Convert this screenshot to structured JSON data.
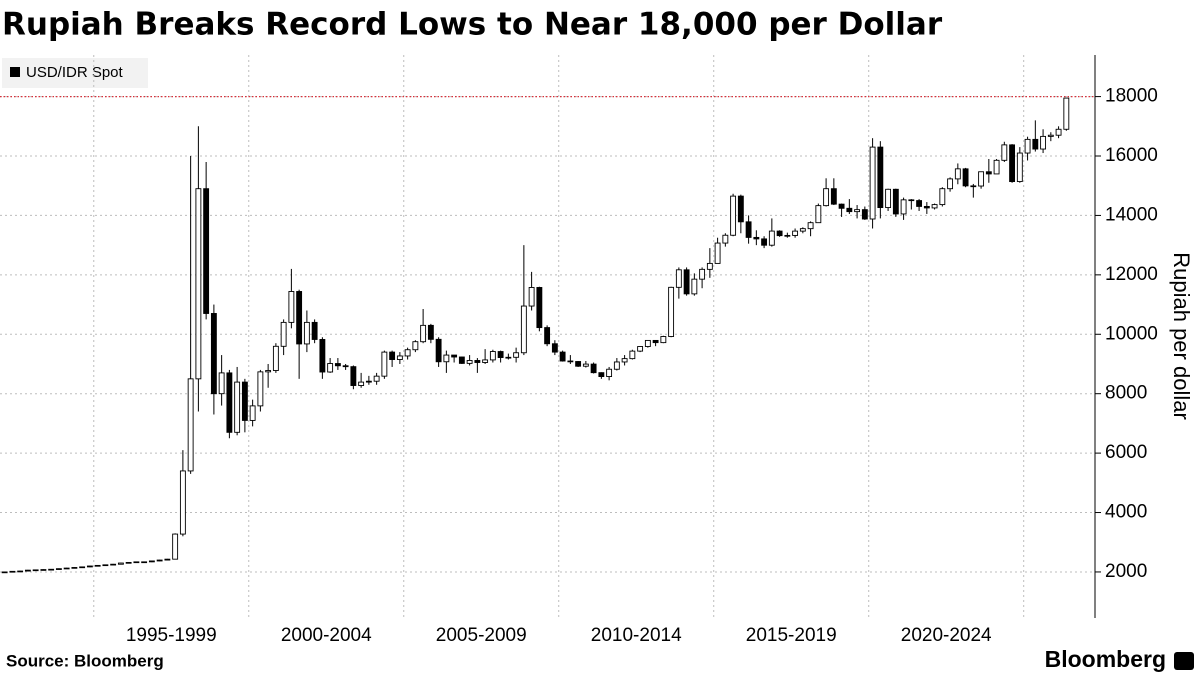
{
  "chart_data": {
    "type": "candlestick",
    "title": "Rupiah Breaks Record Lows to Near 18,000 per Dollar",
    "y_axis_label": "Rupiah per dollar",
    "source": "Source: Bloomberg",
    "brand": "Bloomberg",
    "ylim": [
      450,
      19400
    ],
    "yticks": [
      2000,
      4000,
      6000,
      8000,
      10000,
      12000,
      14000,
      16000,
      18000
    ],
    "xlim": [
      -0.6,
      140.7
    ],
    "xticks": [
      {
        "value": 12,
        "label": "1995-1999"
      },
      {
        "value": 32,
        "label": "2000-2004"
      },
      {
        "value": 52,
        "label": "2005-2009"
      },
      {
        "value": 72,
        "label": "2010-2014"
      },
      {
        "value": 92,
        "label": "2015-2019"
      },
      {
        "value": 112,
        "label": "2020-2024"
      },
      {
        "value": 132,
        "label": null
      }
    ],
    "grid": true,
    "legend_position": "top-left",
    "reference_line": {
      "value": 18000,
      "color": "#d9303a"
    },
    "series": [
      {
        "name": "USD/IDR Spot",
        "color": "#000000",
        "up_color": "#ffffff",
        "down_color": "#000000",
        "open": [
          1990,
          2000,
          2020,
          2030,
          2060,
          2070,
          2080,
          2090,
          2110,
          2130,
          2150,
          2170,
          2200,
          2220,
          2240,
          2260,
          2300,
          2320,
          2340,
          2340,
          2370,
          2400,
          2430,
          3275,
          5400,
          8500,
          14900,
          10700,
          8000,
          8700,
          6700,
          8390,
          7100,
          7590,
          8735,
          8780,
          9595,
          10400,
          11440,
          9675,
          10400,
          9825,
          8730,
          9015,
          8940,
          8910,
          8275,
          8390,
          8420,
          8590,
          9400,
          9150,
          9270,
          9480,
          9750,
          10300,
          9830,
          9075,
          9300,
          9235,
          9020,
          9118,
          9050,
          9137,
          9419,
          9217,
          9225,
          9378,
          10950,
          11575,
          10225,
          9681,
          9400,
          9100,
          9083,
          8925,
          8996,
          8708,
          8577,
          8823,
          9068,
          9180,
          9433,
          9588,
          9793,
          9719,
          9925,
          11580,
          12170,
          11360,
          11855,
          12185,
          12385,
          13070,
          13333,
          14650,
          13785,
          13260,
          13210,
          12998,
          13473,
          13320,
          13327,
          13472,
          13555,
          13756,
          14330,
          14900,
          14380,
          14240,
          14128,
          14195,
          13880,
          16300,
          14265,
          14880,
          14050,
          14525,
          14500,
          14303,
          14253,
          14365,
          14900,
          15230,
          15568,
          14995,
          14990,
          15470,
          15397,
          15855,
          16375,
          15140,
          16100,
          16560,
          16235,
          16660,
          16700,
          16900
        ],
        "high": [
          2010,
          2030,
          2040,
          2070,
          2080,
          2090,
          2100,
          2120,
          2140,
          2160,
          2180,
          2210,
          2230,
          2250,
          2270,
          2310,
          2330,
          2350,
          2350,
          2380,
          2410,
          2440,
          3300,
          6100,
          16000,
          17000,
          15800,
          11000,
          9300,
          8800,
          8900,
          8500,
          7800,
          8800,
          9000,
          9700,
          10500,
          12200,
          11500,
          10800,
          10500,
          9900,
          9200,
          9200,
          9000,
          8950,
          8700,
          8600,
          8700,
          9450,
          9450,
          9400,
          9550,
          9800,
          10850,
          10350,
          9900,
          9450,
          9300,
          9250,
          9300,
          9200,
          9500,
          9480,
          9450,
          9350,
          9550,
          13000,
          12100,
          11600,
          10300,
          9800,
          9450,
          9300,
          9100,
          9100,
          9050,
          8720,
          8900,
          9200,
          9300,
          9480,
          9600,
          9800,
          9800,
          9950,
          11600,
          12250,
          12250,
          12050,
          12250,
          12900,
          13250,
          13400,
          14730,
          14700,
          14000,
          13500,
          13300,
          13900,
          13500,
          13420,
          13560,
          13600,
          13800,
          14400,
          15250,
          15250,
          14400,
          14550,
          14350,
          14300,
          16600,
          16500,
          14900,
          14900,
          14600,
          14550,
          14550,
          14450,
          14400,
          14950,
          15280,
          15750,
          15600,
          15060,
          15470,
          15900,
          15900,
          16480,
          16400,
          16300,
          16650,
          17200,
          16900,
          16800,
          17000,
          17950
        ],
        "low": [
          1980,
          1990,
          2010,
          2020,
          2050,
          2060,
          2070,
          2080,
          2100,
          2120,
          2140,
          2160,
          2190,
          2210,
          2230,
          2250,
          2290,
          2310,
          2330,
          2330,
          2360,
          2390,
          2430,
          3200,
          5300,
          7400,
          10500,
          7300,
          7600,
          6500,
          6600,
          6700,
          6900,
          7400,
          8200,
          8700,
          9300,
          10200,
          8500,
          9400,
          9700,
          8500,
          8700,
          8800,
          8800,
          8150,
          8200,
          8300,
          8300,
          8500,
          8900,
          9000,
          9150,
          9400,
          9700,
          9700,
          8900,
          8700,
          9050,
          9000,
          8950,
          8700,
          9000,
          9050,
          9050,
          9150,
          9050,
          9300,
          10800,
          10100,
          9600,
          9300,
          9080,
          9000,
          8900,
          8880,
          8680,
          8500,
          8450,
          8780,
          8950,
          9150,
          9400,
          9550,
          9600,
          9700,
          9900,
          11200,
          11300,
          11300,
          11550,
          11900,
          12400,
          12950,
          13300,
          13400,
          13050,
          13000,
          12900,
          12950,
          13280,
          13250,
          13250,
          13400,
          13300,
          13750,
          14300,
          14350,
          13950,
          14050,
          13900,
          13850,
          13560,
          13900,
          14150,
          13950,
          13850,
          14200,
          14150,
          14050,
          14200,
          14300,
          14800,
          15050,
          14950,
          14600,
          14900,
          15100,
          15400,
          15800,
          15100,
          15100,
          15850,
          16150,
          16100,
          16500,
          16600,
          16850
        ],
        "close": [
          2000,
          2020,
          2030,
          2060,
          2070,
          2080,
          2090,
          2110,
          2130,
          2150,
          2170,
          2200,
          2220,
          2240,
          2260,
          2300,
          2320,
          2340,
          2340,
          2370,
          2400,
          2430,
          3275,
          5400,
          8500,
          14900,
          10700,
          8000,
          8700,
          6700,
          8390,
          7100,
          7590,
          8735,
          8780,
          9595,
          10400,
          11440,
          9675,
          10400,
          9825,
          8730,
          9015,
          8940,
          8910,
          8275,
          8390,
          8420,
          8590,
          9400,
          9150,
          9270,
          9480,
          9750,
          10300,
          9830,
          9075,
          9300,
          9235,
          9020,
          9118,
          9050,
          9137,
          9419,
          9217,
          9225,
          9378,
          10950,
          11575,
          10225,
          9681,
          9400,
          9100,
          9083,
          8925,
          8996,
          8708,
          8577,
          8823,
          9068,
          9180,
          9433,
          9588,
          9793,
          9719,
          9925,
          11580,
          12170,
          11360,
          11855,
          12185,
          12385,
          13070,
          13333,
          14650,
          13785,
          13260,
          13210,
          12998,
          13473,
          13320,
          13327,
          13472,
          13555,
          13756,
          14330,
          14900,
          14380,
          14240,
          14128,
          14195,
          13880,
          16300,
          14265,
          14880,
          14050,
          14525,
          14500,
          14303,
          14253,
          14365,
          14900,
          15230,
          15568,
          14995,
          14990,
          15470,
          15397,
          15855,
          16375,
          15140,
          16100,
          16560,
          16235,
          16660,
          16700,
          16900,
          17950
        ]
      }
    ]
  }
}
